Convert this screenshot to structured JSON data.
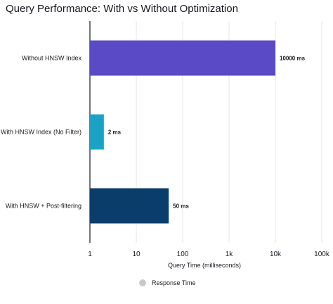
{
  "chart_data": {
    "type": "bar",
    "orientation": "horizontal",
    "title": "Query Performance: With vs Without Optimization",
    "xlabel": "Query Time (milliseconds)",
    "ylabel": "",
    "x_scale": "log",
    "xlim": [
      1,
      100000
    ],
    "x_ticks": [
      1,
      10,
      100,
      1000,
      10000,
      100000
    ],
    "x_tick_labels": [
      "1",
      "10",
      "100",
      "1k",
      "10k",
      "100k"
    ],
    "grid": true,
    "categories": [
      "Without HNSW Index",
      "With HNSW Index (No Filter)",
      "With HNSW + Post-filtering"
    ],
    "series": [
      {
        "name": "Response Time",
        "values": [
          10000,
          2,
          50
        ],
        "data_labels": [
          "10000 ms",
          "2 ms",
          "50 ms"
        ],
        "colors": [
          "#5a4ac6",
          "#1ba3c6",
          "#0b3d6b"
        ]
      }
    ],
    "legend_placement": "bottom-center",
    "legend_color": "#c9c9c9"
  }
}
